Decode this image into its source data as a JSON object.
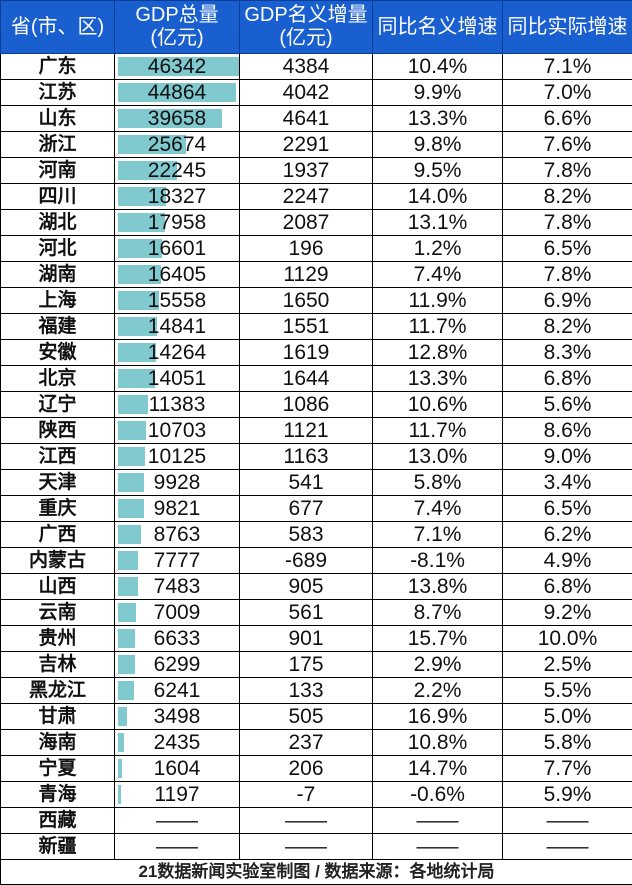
{
  "header": {
    "province": "省(市、区)",
    "gdp": "GDP总量\n(亿元)",
    "increase": "GDP名义增量\n(亿元)",
    "nominal_growth": "同比名义增速",
    "real_growth": "同比实际增速"
  },
  "footer": "21数据新闻实验室制图 / 数据来源：各地统计局",
  "chart_data": {
    "type": "table",
    "bar_color": "#7fc9cf",
    "header_color": "#1a5fcf",
    "columns": [
      "省(市、区)",
      "GDP总量(亿元)",
      "GDP名义增量(亿元)",
      "同比名义增速",
      "同比实际增速"
    ],
    "rows": [
      {
        "province": "广东",
        "gdp": 46342,
        "increase": "4384",
        "nominal": "10.4%",
        "real": "7.1%"
      },
      {
        "province": "江苏",
        "gdp": 44864,
        "increase": "4042",
        "nominal": "9.9%",
        "real": "7.0%"
      },
      {
        "province": "山东",
        "gdp": 39658,
        "increase": "4641",
        "nominal": "13.3%",
        "real": "6.6%"
      },
      {
        "province": "浙江",
        "gdp": 25674,
        "increase": "2291",
        "nominal": "9.8%",
        "real": "7.6%"
      },
      {
        "province": "河南",
        "gdp": 22245,
        "increase": "1937",
        "nominal": "9.5%",
        "real": "7.8%"
      },
      {
        "province": "四川",
        "gdp": 18327,
        "increase": "2247",
        "nominal": "14.0%",
        "real": "8.2%"
      },
      {
        "province": "湖北",
        "gdp": 17958,
        "increase": "2087",
        "nominal": "13.1%",
        "real": "7.8%"
      },
      {
        "province": "河北",
        "gdp": 16601,
        "increase": "196",
        "nominal": "1.2%",
        "real": "6.5%"
      },
      {
        "province": "湖南",
        "gdp": 16405,
        "increase": "1129",
        "nominal": "7.4%",
        "real": "7.8%"
      },
      {
        "province": "上海",
        "gdp": 15558,
        "increase": "1650",
        "nominal": "11.9%",
        "real": "6.9%"
      },
      {
        "province": "福建",
        "gdp": 14841,
        "increase": "1551",
        "nominal": "11.7%",
        "real": "8.2%"
      },
      {
        "province": "安徽",
        "gdp": 14264,
        "increase": "1619",
        "nominal": "12.8%",
        "real": "8.3%"
      },
      {
        "province": "北京",
        "gdp": 14051,
        "increase": "1644",
        "nominal": "13.3%",
        "real": "6.8%"
      },
      {
        "province": "辽宁",
        "gdp": 11383,
        "increase": "1086",
        "nominal": "10.6%",
        "real": "5.6%"
      },
      {
        "province": "陕西",
        "gdp": 10703,
        "increase": "1121",
        "nominal": "11.7%",
        "real": "8.6%"
      },
      {
        "province": "江西",
        "gdp": 10125,
        "increase": "1163",
        "nominal": "13.0%",
        "real": "9.0%"
      },
      {
        "province": "天津",
        "gdp": 9928,
        "increase": "541",
        "nominal": "5.8%",
        "real": "3.4%"
      },
      {
        "province": "重庆",
        "gdp": 9821,
        "increase": "677",
        "nominal": "7.4%",
        "real": "6.5%"
      },
      {
        "province": "广西",
        "gdp": 8763,
        "increase": "583",
        "nominal": "7.1%",
        "real": "6.2%"
      },
      {
        "province": "内蒙古",
        "gdp": 7777,
        "increase": "-689",
        "nominal": "-8.1%",
        "real": "4.9%"
      },
      {
        "province": "山西",
        "gdp": 7483,
        "increase": "905",
        "nominal": "13.8%",
        "real": "6.8%"
      },
      {
        "province": "云南",
        "gdp": 7009,
        "increase": "561",
        "nominal": "8.7%",
        "real": "9.2%"
      },
      {
        "province": "贵州",
        "gdp": 6633,
        "increase": "901",
        "nominal": "15.7%",
        "real": "10.0%"
      },
      {
        "province": "吉林",
        "gdp": 6299,
        "increase": "175",
        "nominal": "2.9%",
        "real": "2.5%"
      },
      {
        "province": "黑龙江",
        "gdp": 6241,
        "increase": "133",
        "nominal": "2.2%",
        "real": "5.5%"
      },
      {
        "province": "甘肃",
        "gdp": 3498,
        "increase": "505",
        "nominal": "16.9%",
        "real": "5.0%"
      },
      {
        "province": "海南",
        "gdp": 2435,
        "increase": "237",
        "nominal": "10.8%",
        "real": "5.8%"
      },
      {
        "province": "宁夏",
        "gdp": 1604,
        "increase": "206",
        "nominal": "14.7%",
        "real": "7.7%"
      },
      {
        "province": "青海",
        "gdp": 1197,
        "increase": "-7",
        "nominal": "-0.6%",
        "real": "5.9%"
      },
      {
        "province": "西藏",
        "gdp": "——",
        "increase": "——",
        "nominal": "——",
        "real": "——"
      },
      {
        "province": "新疆",
        "gdp": "——",
        "increase": "——",
        "nominal": "——",
        "real": "——"
      }
    ]
  }
}
